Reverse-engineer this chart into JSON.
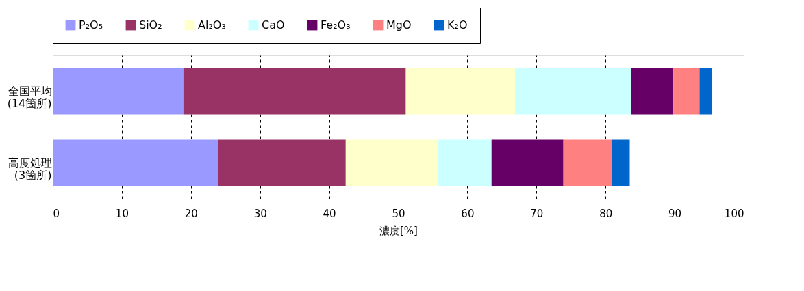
{
  "chart_data": {
    "type": "bar",
    "orientation": "horizontal",
    "stacked": true,
    "xlabel": "濃度[%]",
    "categories": [
      "全国平均\n(14箇所)",
      "高度処理\n(3箇所)"
    ],
    "series": [
      {
        "name": "P₂O₅",
        "color": "#9999ff",
        "values": [
          18.9,
          23.9
        ]
      },
      {
        "name": "SiO₂",
        "color": "#993366",
        "values": [
          32.2,
          18.5
        ]
      },
      {
        "name": "Al₂O₃",
        "color": "#ffffcc",
        "values": [
          15.8,
          13.4
        ]
      },
      {
        "name": "CaO",
        "color": "#ccffff",
        "values": [
          16.8,
          7.7
        ]
      },
      {
        "name": "Fe₂O₃",
        "color": "#660066",
        "values": [
          6.1,
          10.4
        ]
      },
      {
        "name": "MgO",
        "color": "#ff8080",
        "values": [
          3.8,
          7.0
        ]
      },
      {
        "name": "K₂O",
        "color": "#0066cc",
        "values": [
          1.8,
          2.6
        ]
      }
    ],
    "xlim": [
      0,
      100
    ],
    "xticks": [
      0,
      10,
      20,
      30,
      40,
      50,
      60,
      70,
      80,
      90,
      100
    ],
    "grid": "x",
    "legend": "top"
  }
}
